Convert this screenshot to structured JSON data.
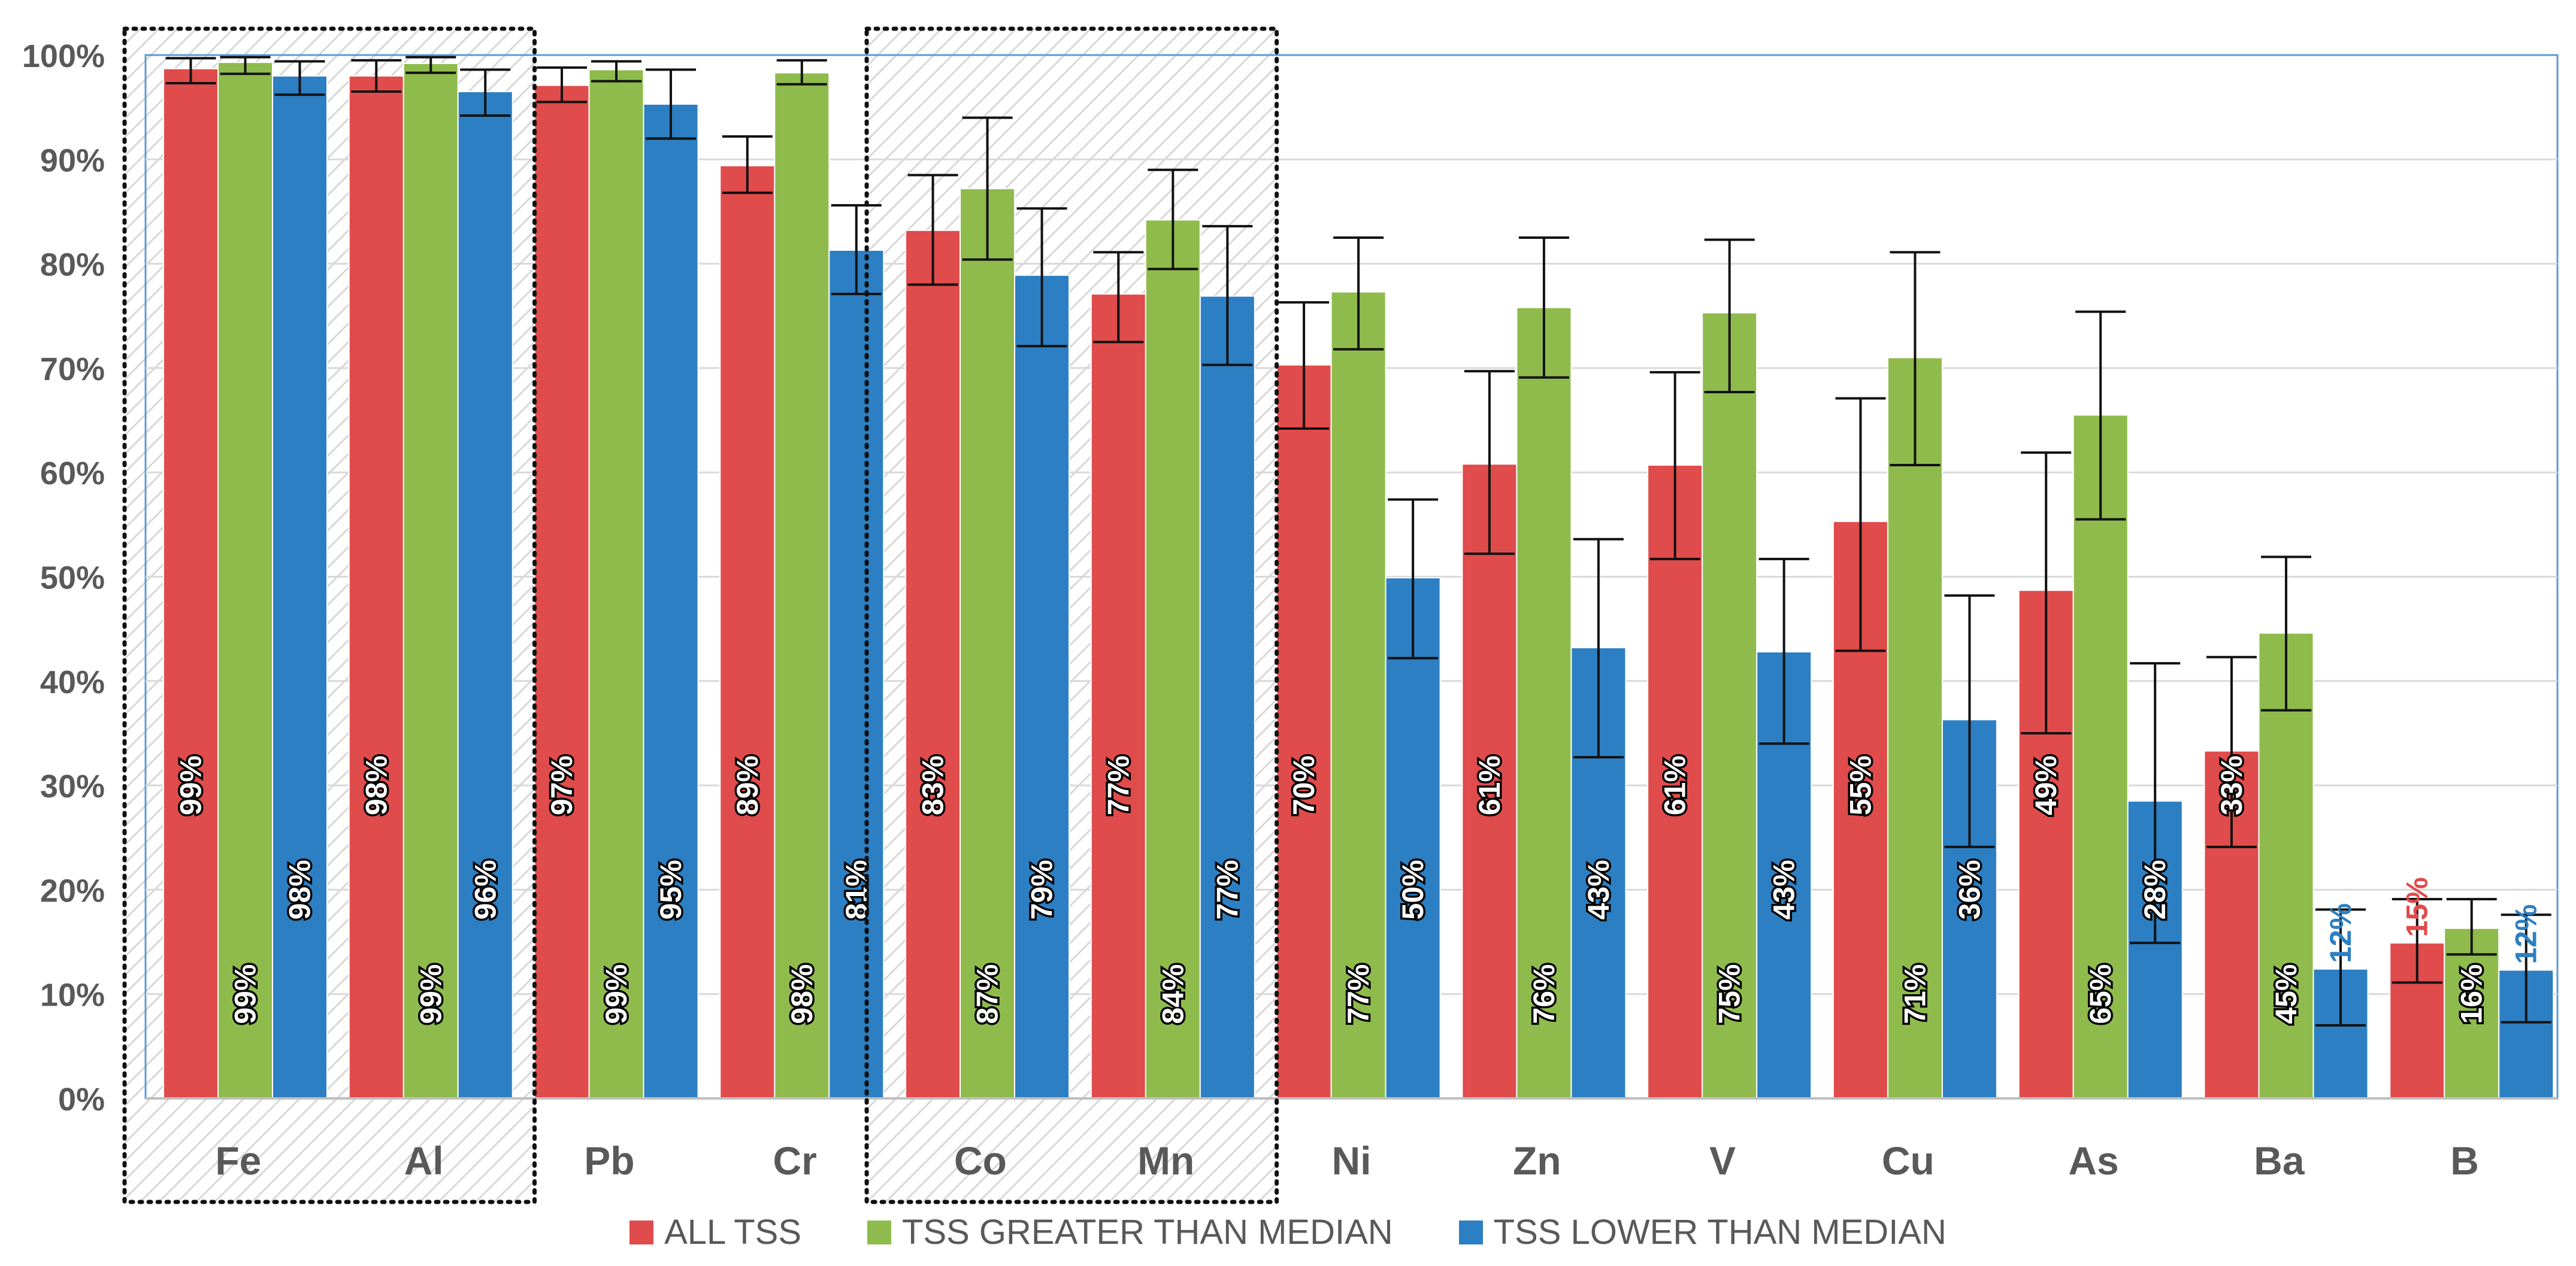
{
  "chart_data": {
    "type": "bar",
    "categories": [
      "Fe",
      "Al",
      "Pb",
      "Cr",
      "Co",
      "Mn",
      "Ni",
      "Zn",
      "V",
      "Cu",
      "As",
      "Ba",
      "B"
    ],
    "y_ticks": [
      "0%",
      "10%",
      "20%",
      "30%",
      "40%",
      "50%",
      "60%",
      "70%",
      "80%",
      "90%",
      "100%"
    ],
    "ylim": [
      0,
      100
    ],
    "grid": true,
    "legend_position": "bottom",
    "highlighted_groups": [
      [
        "Fe",
        "Al"
      ],
      [
        "Co",
        "Mn"
      ]
    ],
    "series": [
      {
        "name": "ALL TSS",
        "color": "#e04b4b",
        "values": [
          98.7,
          98.0,
          97.1,
          89.4,
          83.2,
          77.1,
          70.3,
          60.8,
          60.7,
          55.3,
          48.7,
          33.3,
          14.9
        ],
        "labels": [
          "99%",
          "98%",
          "97%",
          "89%",
          "83%",
          "77%",
          "70%",
          "61%",
          "61%",
          "55%",
          "49%",
          "33%",
          "15%"
        ],
        "err_low": [
          97.3,
          96.5,
          95.5,
          86.8,
          78.0,
          72.5,
          64.2,
          52.2,
          51.7,
          42.9,
          35.0,
          24.1,
          11.1
        ],
        "err_high": [
          99.7,
          99.5,
          98.8,
          92.2,
          88.5,
          81.1,
          76.3,
          69.7,
          69.6,
          67.1,
          61.9,
          42.3,
          19.1
        ]
      },
      {
        "name": "TSS GREATER THAN MEDIAN",
        "color": "#8fbb4c",
        "values": [
          99.3,
          99.2,
          98.6,
          98.3,
          87.2,
          84.2,
          77.3,
          75.8,
          75.3,
          71.0,
          65.5,
          44.6,
          16.3
        ],
        "labels": [
          "99%",
          "99%",
          "99%",
          "98%",
          "87%",
          "84%",
          "77%",
          "76%",
          "75%",
          "71%",
          "65%",
          "45%",
          "16%"
        ],
        "err_low": [
          98.2,
          98.3,
          97.5,
          97.2,
          80.4,
          79.5,
          71.8,
          69.1,
          67.7,
          60.7,
          55.5,
          37.2,
          13.8
        ],
        "err_high": [
          99.8,
          99.8,
          99.4,
          99.5,
          94.0,
          89.0,
          82.5,
          82.5,
          82.3,
          81.1,
          75.4,
          51.9,
          19.1
        ]
      },
      {
        "name": "TSS LOWER THAN MEDIAN",
        "color": "#2c7fc2",
        "values": [
          98.0,
          96.5,
          95.3,
          81.3,
          78.9,
          76.9,
          49.9,
          43.2,
          42.8,
          36.3,
          28.5,
          12.4,
          12.3
        ],
        "labels": [
          "98%",
          "96%",
          "95%",
          "81%",
          "79%",
          "77%",
          "50%",
          "43%",
          "43%",
          "36%",
          "28%",
          "12%",
          "12%"
        ],
        "err_low": [
          96.2,
          94.2,
          92.0,
          77.1,
          72.1,
          70.3,
          42.2,
          32.7,
          34.0,
          24.1,
          14.9,
          7.0,
          7.3
        ],
        "err_high": [
          99.4,
          98.6,
          98.6,
          85.6,
          85.3,
          83.6,
          57.4,
          53.6,
          51.7,
          48.2,
          41.7,
          18.1,
          17.6
        ]
      }
    ]
  }
}
